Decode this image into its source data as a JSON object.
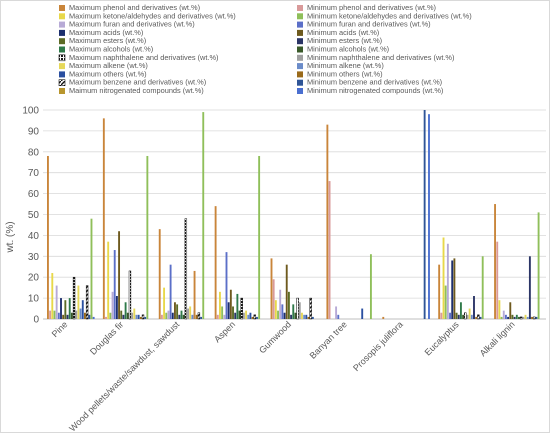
{
  "chart_data": {
    "type": "bar",
    "ylabel": "wt. (%)",
    "ylim": [
      0,
      100
    ],
    "yticks": [
      0,
      10,
      20,
      30,
      40,
      50,
      60,
      70,
      80,
      90,
      100
    ],
    "grid": true,
    "legend_position": "top",
    "categories": [
      "Pine",
      "Douglas fir",
      "Wood pellets/waste/sawdust, sawdust",
      "Aspen",
      "Gumwood",
      "Banyan tree",
      "Prosopis juliflora",
      "Eucalyptus",
      "Alkali lignin"
    ],
    "series": [
      {
        "name": "Maximum phenol and derivatives (wt.%)",
        "color": "#c9853a",
        "pattern": "solid",
        "values": [
          78,
          96,
          43,
          54,
          29,
          93,
          1,
          26,
          55
        ]
      },
      {
        "name": "Minimum phenol and derivatives (wt.%)",
        "color": "#d99a9a",
        "pattern": "solid",
        "values": [
          4,
          1,
          2,
          2,
          19,
          66,
          0,
          3,
          37
        ]
      },
      {
        "name": "Maximum ketone/aldehydes and derivatives (wt.%)",
        "color": "#e8d84a",
        "pattern": "solid",
        "values": [
          22,
          37,
          15,
          13,
          9,
          0,
          0,
          39,
          9
        ]
      },
      {
        "name": "Minimum ketone/aldehydes and derivatives (wt.%)",
        "color": "#8fbf5a",
        "pattern": "solid",
        "values": [
          4,
          3,
          3,
          6,
          4,
          0,
          0,
          16,
          1
        ]
      },
      {
        "name": "Maximum furan and derivatives (wt.%)",
        "color": "#b7aad6",
        "pattern": "solid",
        "values": [
          16,
          13,
          4,
          2,
          14,
          6,
          0,
          36,
          4
        ]
      },
      {
        "name": "Minimum furan and derivatives (wt.%)",
        "color": "#5b6fc8",
        "pattern": "solid",
        "values": [
          3,
          33,
          26,
          32,
          7,
          2,
          0,
          3,
          2
        ]
      },
      {
        "name": "Maximum acids (wt.%)",
        "color": "#1d2f6e",
        "pattern": "solid",
        "values": [
          10,
          11,
          3,
          8,
          3,
          0,
          0,
          28,
          1
        ]
      },
      {
        "name": "Minimum acids (wt.%)",
        "color": "#6e5a1e",
        "pattern": "solid",
        "values": [
          2,
          42,
          8,
          14,
          26,
          0,
          0,
          29,
          8
        ]
      },
      {
        "name": "Maximum esters (wt.%)",
        "color": "#5c6b26",
        "pattern": "solid",
        "values": [
          9,
          4,
          7,
          6,
          13,
          0,
          0,
          3,
          2
        ]
      },
      {
        "name": "Minimum esters (wt.%)",
        "color": "#2b3566",
        "pattern": "solid",
        "values": [
          2,
          2,
          2,
          3,
          2,
          0,
          0,
          2,
          1
        ]
      },
      {
        "name": "Maximum alcohols (wt.%)",
        "color": "#2f7a4a",
        "pattern": "solid",
        "values": [
          10,
          8,
          4,
          12,
          7,
          0,
          0,
          8,
          2
        ]
      },
      {
        "name": "Minimum alcohols (wt.%)",
        "color": "#3a5a2a",
        "pattern": "solid",
        "values": [
          3,
          3,
          2,
          4,
          3,
          0,
          0,
          2,
          1
        ]
      },
      {
        "name": "Maximum naphthalene and derivatives (wt.%)",
        "color": "#1a1a1a",
        "pattern": "dots",
        "values": [
          20,
          23,
          48,
          10,
          10,
          0,
          0,
          3,
          1
        ]
      },
      {
        "name": "Minimum naphthalene and derivatives (wt.%)",
        "color": "#a0a0a0",
        "pattern": "solid",
        "values": [
          4,
          3,
          5,
          3,
          8,
          0,
          0,
          2,
          1
        ]
      },
      {
        "name": "Maximum alkene (wt.%)",
        "color": "#e6d85a",
        "pattern": "solid",
        "values": [
          16,
          5,
          6,
          4,
          3,
          0,
          0,
          5,
          2
        ]
      },
      {
        "name": "Minimum alkene (wt.%)",
        "color": "#6b8cc9",
        "pattern": "solid",
        "values": [
          5,
          2,
          2,
          2,
          2,
          0,
          0,
          2,
          1
        ]
      },
      {
        "name": "Maximum others (wt.%)",
        "color": "#2a4fa0",
        "pattern": "solid",
        "values": [
          9,
          2,
          4,
          3,
          2,
          5,
          0,
          4,
          1
        ]
      },
      {
        "name": "Minimum others (wt.%)",
        "color": "#9a6a1a",
        "pattern": "solid",
        "values": [
          3,
          1,
          2,
          1,
          1,
          0,
          0,
          1,
          1
        ]
      },
      {
        "name": "Maximum benzene and derivatives (wt.%)",
        "color": "#111111",
        "pattern": "diag",
        "values": [
          16,
          2,
          3,
          2,
          10,
          0,
          0,
          2,
          1
        ]
      },
      {
        "name": "Minimum benzene and derivatives (wt.%)",
        "color": "#2f5597",
        "pattern": "solid",
        "values": [
          2,
          1,
          1,
          1,
          1,
          0,
          100,
          1,
          1
        ]
      },
      {
        "name": "Maimum nitrogenated compounds (wt.%)",
        "color": "#b8962e",
        "pattern": "solid",
        "values": [
          2,
          0,
          0,
          0,
          0,
          0,
          0,
          0,
          0
        ]
      },
      {
        "name": "Minimum nitrogenated compounds (wt.%)",
        "color": "#4a6fd0",
        "pattern": "solid",
        "values": [
          1,
          0,
          0,
          0,
          0,
          0,
          98,
          0,
          0
        ]
      }
    ],
    "extra_bars": [
      {
        "category": "Pine",
        "value": 48,
        "color": "#8fbf5a"
      },
      {
        "category": "Douglas fir",
        "value": 78,
        "color": "#8fbf5a"
      },
      {
        "category": "Wood pellets/waste/sawdust, sawdust",
        "value": 99,
        "color": "#8fbf5a"
      },
      {
        "category": "Wood pellets/waste/sawdust, sawdust",
        "value": 23,
        "color": "#c9853a"
      },
      {
        "category": "Aspen",
        "value": 78,
        "color": "#8fbf5a"
      },
      {
        "category": "Banyan tree",
        "value": 31,
        "color": "#8fbf5a"
      },
      {
        "category": "Eucalyptus",
        "value": 30,
        "color": "#8fbf5a"
      },
      {
        "category": "Eucalyptus",
        "value": 11,
        "color": "#2b3566"
      },
      {
        "category": "Alkali lignin",
        "value": 51,
        "color": "#8fbf5a"
      },
      {
        "category": "Alkali lignin",
        "value": 30,
        "color": "#2b3566"
      }
    ]
  }
}
